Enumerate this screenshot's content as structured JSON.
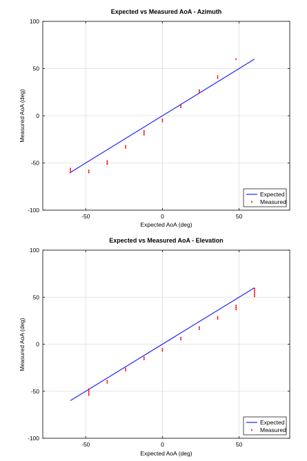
{
  "colors": {
    "expected": "#1f1fff",
    "measured": "#ff0000",
    "grid": "#dcdcdc",
    "axes": "#000000"
  },
  "chart_data": [
    {
      "type": "line",
      "title": "Expected vs Measured AoA - Azimuth",
      "xlabel": "Expected AoA (deg)",
      "ylabel": "Measured AoA (deg)",
      "xlim": [
        -78,
        83
      ],
      "ylim": [
        -100,
        100
      ],
      "xticks": [
        -50,
        0,
        50
      ],
      "yticks": [
        -100,
        -50,
        0,
        50,
        100
      ],
      "xtick_labels": [
        "-50",
        "0",
        "50"
      ],
      "ytick_labels": [
        "-100",
        "-50",
        "0",
        "50",
        "100"
      ],
      "grid": true,
      "legend": {
        "location": "bottom-right",
        "entries": [
          {
            "label": "Expected",
            "marker": "line"
          },
          {
            "label": "Measured",
            "marker": "dot"
          }
        ]
      },
      "series": [
        {
          "name": "Expected",
          "kind": "line",
          "x": [
            -60,
            60
          ],
          "y": [
            -60,
            60
          ]
        },
        {
          "name": "Measured",
          "kind": "scatter",
          "points": [
            [
              -60,
              -56
            ],
            [
              -60,
              -58
            ],
            [
              -60,
              -60
            ],
            [
              -48,
              -58
            ],
            [
              -48,
              -60
            ],
            [
              -36,
              -48
            ],
            [
              -36,
              -50
            ],
            [
              -36,
              -51
            ],
            [
              -24,
              -32
            ],
            [
              -24,
              -34
            ],
            [
              -12,
              -16
            ],
            [
              -12,
              -18
            ],
            [
              -12,
              -20
            ],
            [
              0,
              -4
            ],
            [
              0,
              -6
            ],
            [
              12,
              9
            ],
            [
              12,
              11
            ],
            [
              24,
              25
            ],
            [
              24,
              27
            ],
            [
              36,
              40
            ],
            [
              36,
              42
            ],
            [
              48,
              60
            ]
          ]
        }
      ]
    },
    {
      "type": "line",
      "title": "Expected vs Measured AoA - Elevation",
      "xlabel": "Expected AoA (deg)",
      "ylabel": "Measured AoA (deg)",
      "xlim": [
        -78,
        83
      ],
      "ylim": [
        -100,
        100
      ],
      "xticks": [
        -50,
        0,
        50
      ],
      "yticks": [
        -100,
        -50,
        0,
        50,
        100
      ],
      "xtick_labels": [
        "-50",
        "0",
        "50"
      ],
      "ytick_labels": [
        "-100",
        "-50",
        "0",
        "50",
        "100"
      ],
      "grid": true,
      "legend": {
        "location": "bottom-right",
        "entries": [
          {
            "label": "Expected",
            "marker": "line"
          },
          {
            "label": "Measured",
            "marker": "dot"
          }
        ]
      },
      "series": [
        {
          "name": "Expected",
          "kind": "line",
          "x": [
            -60,
            60
          ],
          "y": [
            -60,
            60
          ]
        },
        {
          "name": "Measured",
          "kind": "scatter",
          "points": [
            [
              -48,
              -48
            ],
            [
              -48,
              -50
            ],
            [
              -48,
              -52
            ],
            [
              -48,
              -54
            ],
            [
              -36,
              -39
            ],
            [
              -36,
              -41
            ],
            [
              -24,
              -26
            ],
            [
              -24,
              -28
            ],
            [
              -12,
              -14
            ],
            [
              -12,
              -16
            ],
            [
              0,
              -5
            ],
            [
              0,
              -7
            ],
            [
              12,
              5
            ],
            [
              12,
              7
            ],
            [
              24,
              16
            ],
            [
              24,
              18
            ],
            [
              36,
              27
            ],
            [
              36,
              29
            ],
            [
              48,
              37
            ],
            [
              48,
              39
            ],
            [
              48,
              41
            ],
            [
              60,
              51
            ],
            [
              60,
              53
            ],
            [
              60,
              55
            ],
            [
              60,
              57
            ],
            [
              60,
              59
            ]
          ]
        }
      ]
    }
  ]
}
